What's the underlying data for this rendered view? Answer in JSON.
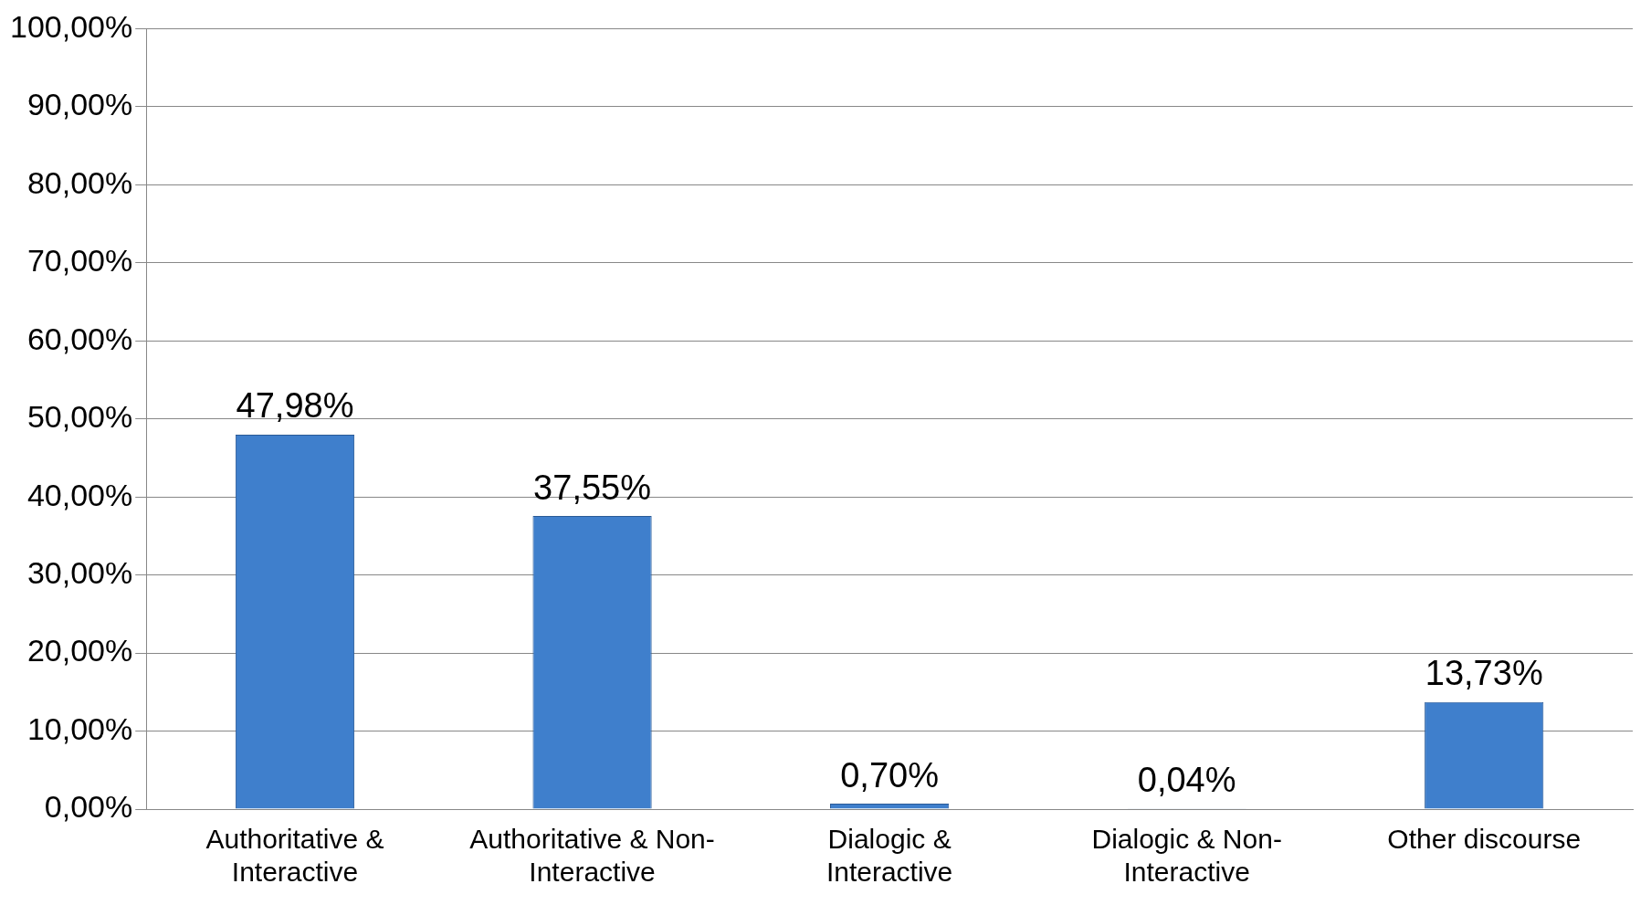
{
  "chart_data": {
    "type": "bar",
    "categories": [
      "Authoritative & Interactive",
      "Authoritative & Non-Interactive",
      "Dialogic & Interactive",
      "Dialogic & Non-Interactive",
      "Other discourse"
    ],
    "values": [
      47.98,
      37.55,
      0.7,
      0.04,
      13.73
    ],
    "value_labels": [
      "47,98%",
      "37,55%",
      "0,70%",
      "0,04%",
      "13,73%"
    ],
    "color": "#3f7fcc",
    "ylim": [
      0,
      100
    ],
    "yticks": [
      {
        "value": 0,
        "label": "0,00%"
      },
      {
        "value": 10,
        "label": "10,00%"
      },
      {
        "value": 20,
        "label": "20,00%"
      },
      {
        "value": 30,
        "label": "30,00%"
      },
      {
        "value": 40,
        "label": "40,00%"
      },
      {
        "value": 50,
        "label": "50,00%"
      },
      {
        "value": 60,
        "label": "60,00%"
      },
      {
        "value": 70,
        "label": "70,00%"
      },
      {
        "value": 80,
        "label": "80,00%"
      },
      {
        "value": 90,
        "label": "90,00%"
      },
      {
        "value": 100,
        "label": "100,00%"
      }
    ],
    "grid": "y",
    "legend": false
  }
}
